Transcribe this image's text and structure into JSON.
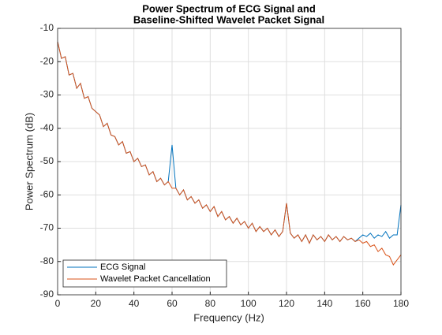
{
  "chart_data": {
    "type": "line",
    "title": [
      "Power Spectrum of ECG Signal and",
      "Baseline-Shifted Wavelet Packet Signal"
    ],
    "xlabel": "Frequency (Hz)",
    "ylabel": "Power Spectrum (dB)",
    "x": [
      0,
      2,
      4,
      6,
      8,
      10,
      12,
      14,
      16,
      18,
      20,
      22,
      24,
      26,
      28,
      30,
      32,
      34,
      36,
      38,
      40,
      42,
      44,
      46,
      48,
      50,
      52,
      54,
      56,
      58,
      60,
      62,
      64,
      66,
      68,
      70,
      72,
      74,
      76,
      78,
      80,
      82,
      84,
      86,
      88,
      90,
      92,
      94,
      96,
      98,
      100,
      102,
      104,
      106,
      108,
      110,
      112,
      114,
      116,
      118,
      120,
      122,
      124,
      126,
      128,
      130,
      132,
      134,
      136,
      138,
      140,
      142,
      144,
      146,
      148,
      150,
      152,
      154,
      156,
      158,
      160,
      162,
      164,
      166,
      168,
      170,
      172,
      174,
      176,
      178,
      180
    ],
    "series": [
      {
        "name": "ECG Signal",
        "color": "#0072BD",
        "values": [
          -14,
          -19,
          -18.5,
          -24,
          -23.5,
          -28,
          -26.5,
          -31,
          -30.5,
          -34,
          -35,
          -36,
          -39.5,
          -38.5,
          -42,
          -42.5,
          -45,
          -44,
          -47.5,
          -47,
          -50,
          -49,
          -51.5,
          -51,
          -54,
          -53,
          -56,
          -55,
          -57,
          -56,
          -45,
          -58,
          -60,
          -58.5,
          -61.5,
          -60.5,
          -62.5,
          -61.5,
          -64,
          -63,
          -65,
          -63.5,
          -66.5,
          -65,
          -67.5,
          -66.5,
          -68.5,
          -67,
          -69,
          -68,
          -70,
          -68.5,
          -71,
          -69.5,
          -71,
          -70,
          -72,
          -70.5,
          -72.5,
          -71,
          -62.5,
          -71.5,
          -73,
          -72,
          -74,
          -72,
          -74.5,
          -72,
          -73.5,
          -72.5,
          -74,
          -72,
          -73.5,
          -72.5,
          -74,
          -72.5,
          -73.5,
          -73,
          -74,
          -73,
          -72,
          -72.5,
          -71.5,
          -73,
          -72,
          -72.5,
          -71,
          -73,
          -72,
          -72,
          -63
        ]
      },
      {
        "name": "Wavelet Packet Cancellation",
        "color": "#D95319",
        "values": [
          -14,
          -19,
          -18.5,
          -24,
          -23.5,
          -28,
          -26.5,
          -31,
          -30.5,
          -34,
          -35,
          -36,
          -39.5,
          -38.5,
          -42,
          -42.5,
          -45,
          -44,
          -47.5,
          -47,
          -50,
          -49,
          -51.5,
          -51,
          -54,
          -53,
          -56,
          -55,
          -57,
          -56,
          -58,
          -58,
          -60,
          -58.5,
          -61.5,
          -60.5,
          -62.5,
          -61.5,
          -64,
          -63,
          -65,
          -63.5,
          -66.5,
          -65,
          -67.5,
          -66.5,
          -68.5,
          -67,
          -69,
          -68,
          -70,
          -68.5,
          -71,
          -69.5,
          -71,
          -70,
          -72,
          -70.5,
          -72.5,
          -71,
          -62.5,
          -71.5,
          -73,
          -72,
          -74,
          -72,
          -74.5,
          -72,
          -73.5,
          -72.5,
          -74,
          -72,
          -73.5,
          -72.5,
          -74,
          -72.5,
          -73.5,
          -73,
          -74,
          -73.5,
          -74.5,
          -74,
          -75.5,
          -75,
          -77,
          -76,
          -78,
          -78.5,
          -81,
          -79.5,
          -78
        ]
      }
    ],
    "xlim": [
      0,
      180
    ],
    "xticks": [
      0,
      20,
      40,
      60,
      80,
      100,
      120,
      140,
      160,
      180
    ],
    "ylim": [
      -90,
      -10
    ],
    "yticks": [
      -90,
      -80,
      -70,
      -60,
      -50,
      -40,
      -30,
      -20,
      -10
    ],
    "grid": true,
    "legend": "southwest"
  }
}
